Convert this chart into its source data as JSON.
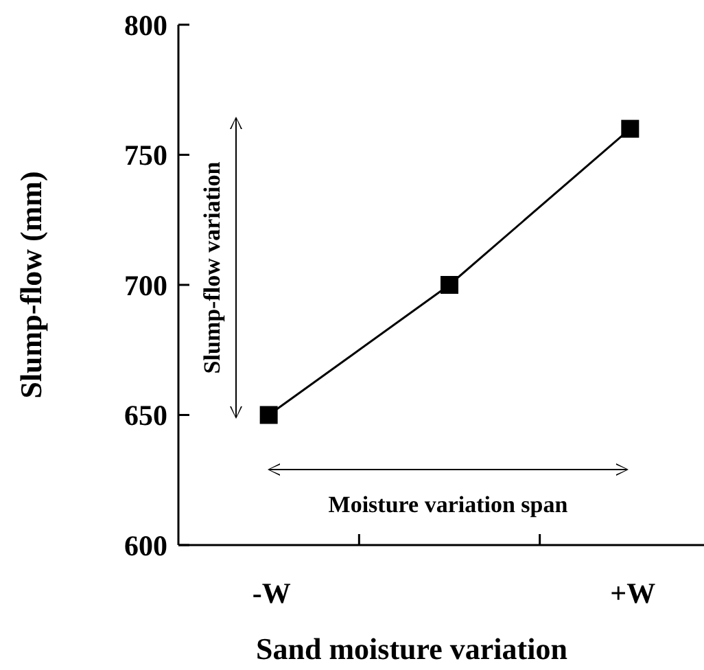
{
  "chart_data": {
    "type": "line",
    "xlabel": "Sand moisture variation",
    "ylabel": "Slump-flow (mm)",
    "categories": [
      "-W",
      null,
      "+W"
    ],
    "series": [
      {
        "color": "#000000",
        "values": [
          650,
          700,
          760
        ]
      }
    ],
    "ylim": [
      600,
      800
    ],
    "yticks": [
      600,
      650,
      700,
      750,
      800
    ],
    "marker": "square",
    "line_style": "solid",
    "grid": false,
    "annotations": [
      "Slump-flow variation",
      "Moisture variation span"
    ]
  }
}
